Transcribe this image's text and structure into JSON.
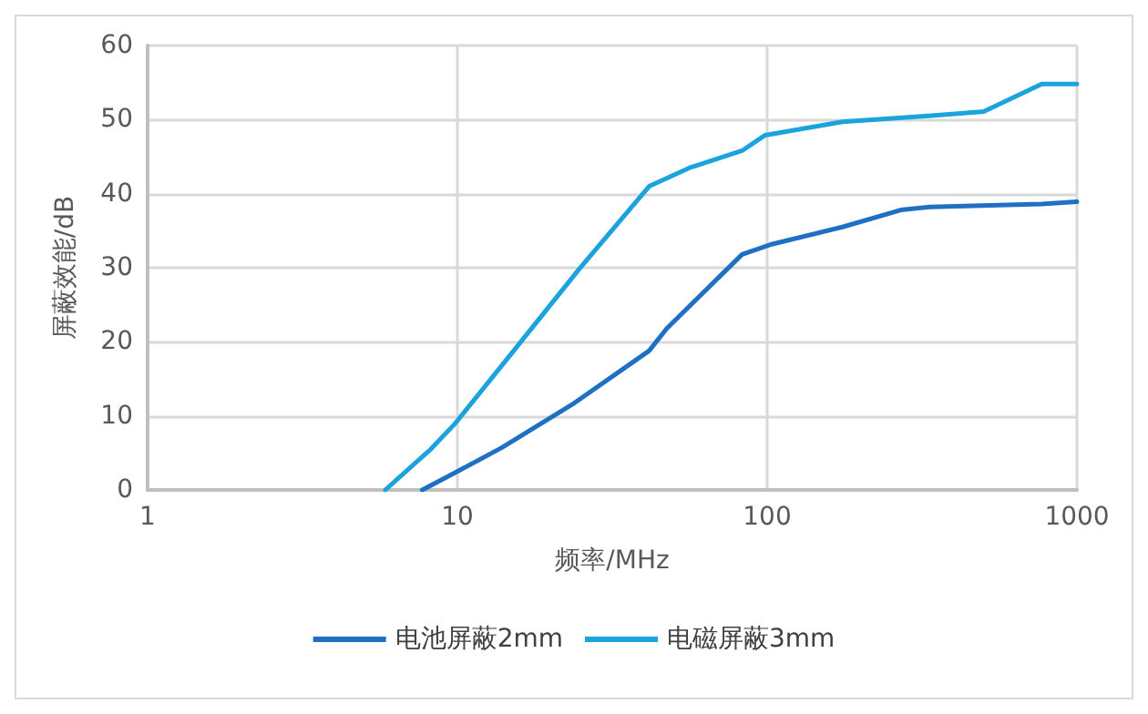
{
  "chart_data": {
    "type": "line",
    "xlabel": "频率/MHz",
    "ylabel": "屏蔽效能/dB",
    "log": "x",
    "xlim": [
      1,
      1000
    ],
    "xticks": [
      1,
      10,
      100,
      1000
    ],
    "ylim": [
      0,
      60
    ],
    "yticks": [
      0,
      10,
      20,
      30,
      40,
      50,
      60
    ],
    "grid": true,
    "legend": "bottom",
    "marker": "none",
    "line_style": "solid",
    "series": [
      {
        "name": "电池屏蔽2mm",
        "color": "#1f6fc5",
        "x": [
          7.7,
          9.8,
          13.9,
          23.4,
          41.6,
          47.4,
          83,
          104,
          175,
          270,
          335,
          770,
          1000
        ],
        "values": [
          0,
          2.3,
          5.7,
          11.5,
          18.8,
          21.8,
          31.8,
          33.2,
          35.5,
          37.8,
          38.2,
          38.6,
          38.9
        ]
      },
      {
        "name": "电磁屏蔽3mm",
        "color": "#1aa3dd",
        "x": [
          5.85,
          8.2,
          9.8,
          15.2,
          24.7,
          41.6,
          56.2,
          83,
          98.5,
          175,
          308,
          500,
          770,
          1000
        ],
        "values": [
          0,
          5.5,
          8.9,
          18.8,
          29.8,
          41,
          43.5,
          45.8,
          47.9,
          49.7,
          50.4,
          51.1,
          54.8,
          54.8
        ]
      }
    ]
  }
}
